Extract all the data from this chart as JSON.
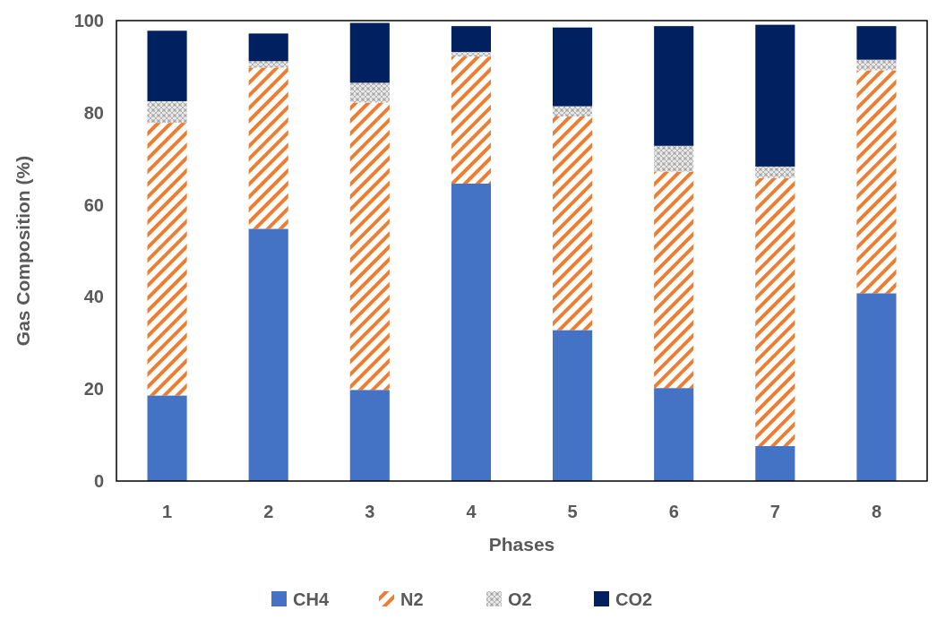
{
  "chart_data": {
    "type": "bar",
    "stacked": true,
    "xlabel": "Phases",
    "ylabel": "Gas Composition (%)",
    "categories": [
      "1",
      "2",
      "3",
      "4",
      "5",
      "6",
      "7",
      "8"
    ],
    "series": [
      {
        "name": "CH4",
        "color": "#4472c4",
        "values": [
          18.6,
          54.8,
          19.8,
          64.6,
          32.8,
          20.2,
          7.6,
          40.8
        ]
      },
      {
        "name": "N2",
        "color": "#ed7d31",
        "values": [
          59.2,
          35.0,
          62.4,
          27.6,
          46.4,
          47.0,
          58.2,
          48.4
        ]
      },
      {
        "name": "O2",
        "color": "#a5a5a5",
        "values": [
          4.7,
          1.4,
          4.3,
          1.0,
          2.2,
          5.6,
          2.5,
          2.3
        ]
      },
      {
        "name": "CO2",
        "color": "#002060",
        "values": [
          15.3,
          6.0,
          13.0,
          5.6,
          17.1,
          26.0,
          30.8,
          7.3
        ]
      }
    ],
    "ylim": [
      0,
      100
    ],
    "yticks": [
      0,
      20,
      40,
      60,
      80,
      100
    ],
    "grid": false,
    "legend": "bottom"
  }
}
